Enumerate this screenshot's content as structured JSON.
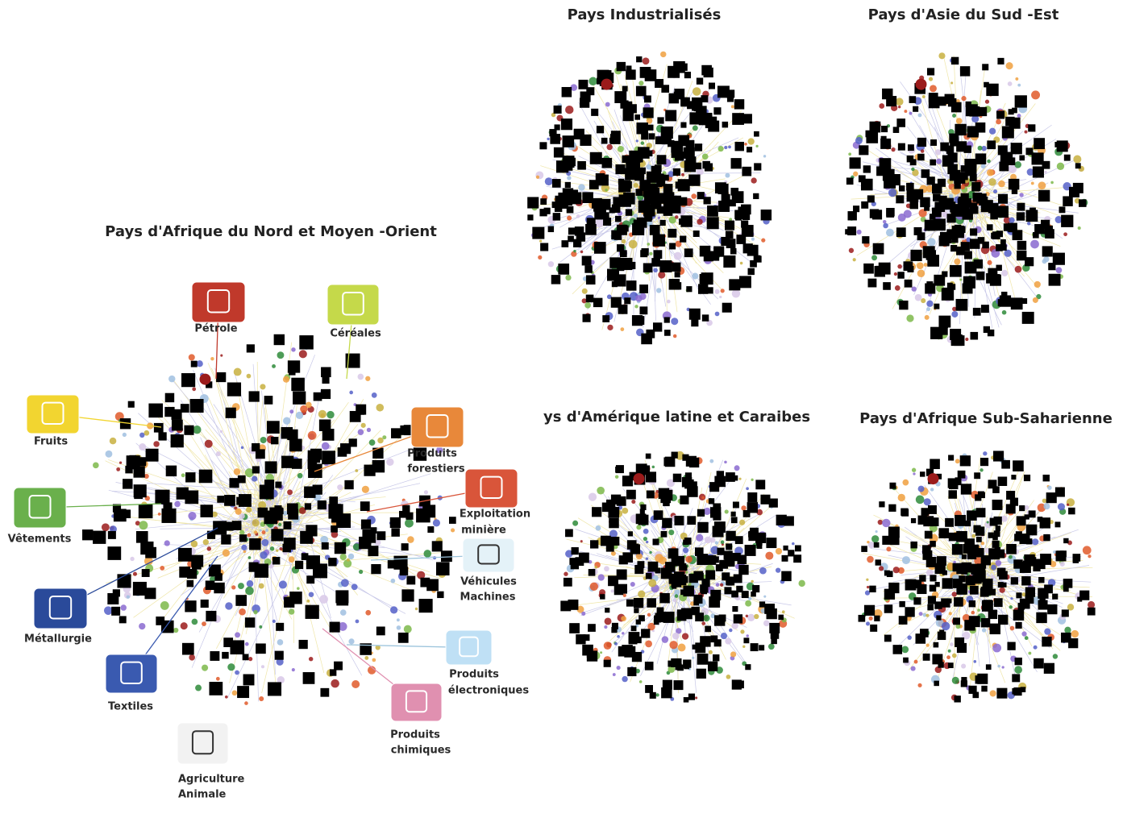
{
  "main_network": {
    "title": "Pays d'Afrique du Nord et Moyen -Orient",
    "categories": [
      {
        "label": [
          "Pétrole"
        ]
      },
      {
        "label": [
          "Céréales"
        ]
      },
      {
        "label": [
          "Fruits"
        ]
      },
      {
        "label": [
          "Produits",
          "forestiers"
        ]
      },
      {
        "label": [
          "Vêtements"
        ]
      },
      {
        "label": [
          "Exploitation",
          "minière"
        ]
      },
      {
        "label": [
          "Véhicules",
          "Machines"
        ]
      },
      {
        "label": [
          "Métallurgie"
        ]
      },
      {
        "label": [
          "Produits",
          "électroniques"
        ]
      },
      {
        "label": [
          "Textiles"
        ]
      },
      {
        "label": [
          "Produits",
          "chimiques"
        ]
      },
      {
        "label": [
          "Agriculture",
          "Animale"
        ]
      }
    ]
  },
  "small_networks": [
    {
      "title": "Pays Industrialisés"
    },
    {
      "title": "Pays d'Asie du Sud -Est"
    },
    {
      "title": "ys d'Amérique latine et Caraibes"
    },
    {
      "title": "Pays d'Afrique Sub-Saharienne"
    }
  ]
}
